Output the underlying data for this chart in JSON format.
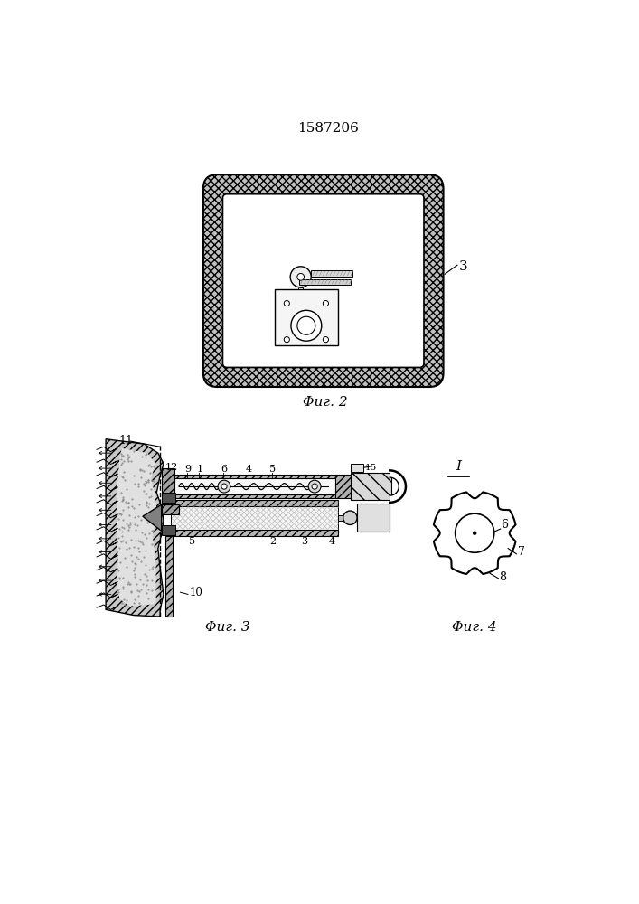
{
  "title": "1587206",
  "fig2_label": "Φиг. 2",
  "fig3_label": "Φиг. 3",
  "fig4_label": "Φиг. 4",
  "bg_color": "#ffffff",
  "lc": "#000000"
}
